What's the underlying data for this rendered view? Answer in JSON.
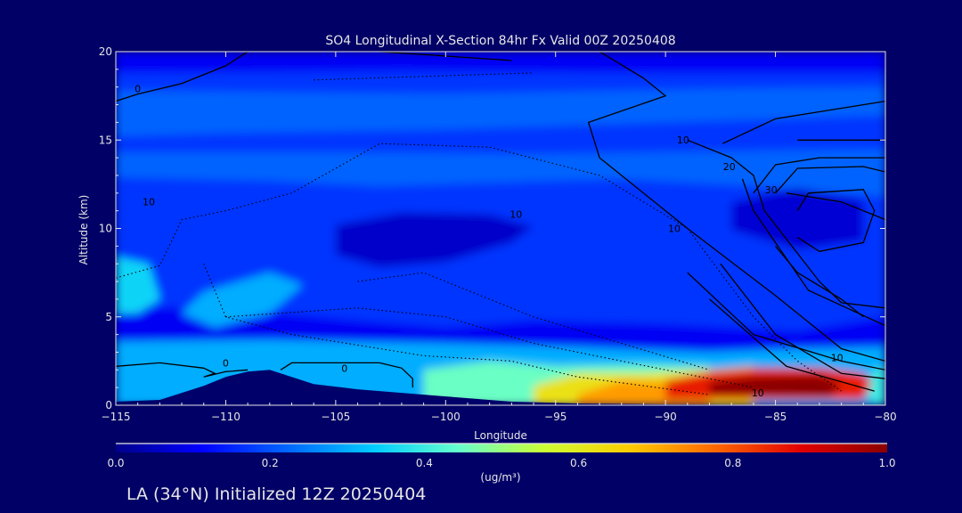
{
  "chart_data": {
    "type": "heatmap",
    "title": "SO4 Longitudinal X-Section 84hr  Fx Valid 00Z 20250408",
    "xlabel": "Longitude",
    "ylabel": "Altitude (km)",
    "xlim": [
      -115,
      -80
    ],
    "ylim": [
      0,
      20
    ],
    "x_ticks": [
      -115,
      -110,
      -105,
      -100,
      -95,
      -90,
      -85,
      -80
    ],
    "x_tick_labels": [
      "−115",
      "−110",
      "−105",
      "−100",
      "−95",
      "−90",
      "−85",
      "−80"
    ],
    "y_ticks": [
      0,
      5,
      10,
      15,
      20
    ],
    "y_tick_labels": [
      "0",
      "5",
      "10",
      "15",
      "20"
    ],
    "grid": false,
    "colorbar": {
      "label": "(ug/m³)",
      "min": 0.0,
      "max": 1.0,
      "ticks": [
        0.0,
        0.2,
        0.4,
        0.6,
        0.8,
        1.0
      ],
      "tick_labels": [
        "0.0",
        "0.2",
        "0.4",
        "0.6",
        "0.8",
        "1.0"
      ],
      "colors": [
        "#00008c",
        "#0000ff",
        "#0066ff",
        "#00ccff",
        "#66ffcc",
        "#ccff33",
        "#ffcc00",
        "#ff6600",
        "#e00000",
        "#8b0000"
      ]
    },
    "field_levels": [
      {
        "value": 0.1,
        "points": [
          [
            -115,
            20
          ],
          [
            -80,
            20
          ],
          [
            -80,
            0
          ],
          [
            -115,
            0
          ]
        ]
      },
      {
        "value": 0.17,
        "points": [
          [
            -115,
            18.8
          ],
          [
            -102,
            18.9
          ],
          [
            -90,
            18.8
          ],
          [
            -80,
            18.8
          ],
          [
            -80,
            5
          ],
          [
            -84,
            4.2
          ],
          [
            -90,
            4.6
          ],
          [
            -96,
            4.8
          ],
          [
            -100,
            4.4
          ],
          [
            -104,
            4.8
          ],
          [
            -110,
            5.5
          ],
          [
            -115,
            5.6
          ]
        ]
      },
      {
        "value": 0.22,
        "points": [
          [
            -115,
            17.8
          ],
          [
            -100,
            17.6
          ],
          [
            -88,
            17.9
          ],
          [
            -80,
            18
          ],
          [
            -80,
            16.4
          ],
          [
            -90,
            16
          ],
          [
            -100,
            15.6
          ],
          [
            -110,
            15.4
          ],
          [
            -115,
            15.2
          ]
        ]
      },
      {
        "value": 0.22,
        "points": [
          [
            -115,
            14.3
          ],
          [
            -104,
            14.3
          ],
          [
            -96,
            14.2
          ],
          [
            -86,
            14.4
          ],
          [
            -80,
            14.5
          ],
          [
            -80,
            11.8
          ],
          [
            -86,
            12.4
          ],
          [
            -92,
            12.8
          ],
          [
            -98,
            12.6
          ],
          [
            -103,
            12.4
          ],
          [
            -108,
            12.7
          ],
          [
            -115,
            12.9
          ]
        ]
      },
      {
        "value": 0.06,
        "points": [
          [
            -105,
            10.2
          ],
          [
            -102,
            10.9
          ],
          [
            -98,
            10.8
          ],
          [
            -96,
            10.1
          ],
          [
            -97,
            9.2
          ],
          [
            -100,
            8.1
          ],
          [
            -103,
            7.8
          ],
          [
            -105,
            8.5
          ]
        ]
      },
      {
        "value": 0.07,
        "points": [
          [
            -87,
            11.5
          ],
          [
            -84,
            12.3
          ],
          [
            -81,
            11.6
          ],
          [
            -81,
            9.3
          ],
          [
            -84,
            8.8
          ],
          [
            -87,
            9.9
          ]
        ]
      },
      {
        "value": 0.35,
        "points": [
          [
            -115,
            8.4
          ],
          [
            -113.5,
            8
          ],
          [
            -113,
            6
          ],
          [
            -114,
            5.2
          ],
          [
            -115,
            5.2
          ]
        ]
      },
      {
        "value": 0.3,
        "points": [
          [
            -111,
            6.4
          ],
          [
            -108,
            7.5
          ],
          [
            -106.5,
            6.8
          ],
          [
            -108,
            5.2
          ],
          [
            -110.5,
            4.4
          ],
          [
            -112,
            5.2
          ]
        ]
      },
      {
        "value": 0.3,
        "points": [
          [
            -115,
            3.6
          ],
          [
            -108,
            3.7
          ],
          [
            -100,
            3.5
          ],
          [
            -94,
            3.3
          ],
          [
            -88,
            3
          ],
          [
            -84,
            3.2
          ],
          [
            -80,
            3.3
          ],
          [
            -80,
            0
          ],
          [
            -115,
            0
          ]
        ]
      },
      {
        "value": 0.45,
        "points": [
          [
            -101,
            2
          ],
          [
            -98,
            2.5
          ],
          [
            -95,
            2.2
          ],
          [
            -91,
            2.3
          ],
          [
            -88,
            2.2
          ],
          [
            -88,
            0
          ],
          [
            -101,
            0
          ]
        ]
      },
      {
        "value": 0.62,
        "points": [
          [
            -96,
            1.1
          ],
          [
            -94,
            1.8
          ],
          [
            -91,
            1.8
          ],
          [
            -88,
            2
          ],
          [
            -86,
            2.2
          ],
          [
            -86,
            0
          ],
          [
            -96,
            0
          ]
        ]
      },
      {
        "value": 0.72,
        "points": [
          [
            -94,
            0.6
          ],
          [
            -92,
            1.4
          ],
          [
            -90,
            1.3
          ],
          [
            -88,
            1.6
          ],
          [
            -88,
            0
          ],
          [
            -94,
            0
          ]
        ]
      },
      {
        "value": 0.86,
        "points": [
          [
            -90,
            1.4
          ],
          [
            -88,
            1.9
          ],
          [
            -86,
            2.1
          ],
          [
            -83,
            2.1
          ],
          [
            -81,
            1.8
          ],
          [
            -80.6,
            1.3
          ],
          [
            -81,
            0.3
          ],
          [
            -90,
            0.3
          ]
        ]
      },
      {
        "value": 1.0,
        "points": [
          [
            -88,
            1.3
          ],
          [
            -86,
            1.6
          ],
          [
            -83,
            1.7
          ],
          [
            -82,
            1.2
          ],
          [
            -82.5,
            0.5
          ],
          [
            -88,
            0.6
          ]
        ]
      },
      {
        "value": 0.4,
        "points": [
          [
            -80.6,
            2
          ],
          [
            -80,
            2.2
          ],
          [
            -80,
            0
          ],
          [
            -80.8,
            0.2
          ]
        ]
      }
    ],
    "terrain": [
      [
        -115,
        0
      ],
      [
        -115,
        0.2
      ],
      [
        -113,
        0.3
      ],
      [
        -111,
        1.1
      ],
      [
        -110,
        1.6
      ],
      [
        -109,
        1.9
      ],
      [
        -108,
        2.0
      ],
      [
        -107,
        1.6
      ],
      [
        -106,
        1.2
      ],
      [
        -104,
        0.9
      ],
      [
        -102,
        0.7
      ],
      [
        -100,
        0.5
      ],
      [
        -97,
        0.2
      ],
      [
        -94,
        0.1
      ],
      [
        -90,
        0.05
      ],
      [
        -80,
        0
      ]
    ],
    "contours": [
      {
        "style": "solid",
        "points": [
          [
            -115,
            17.2
          ],
          [
            -114,
            17.6
          ],
          [
            -112,
            18.2
          ],
          [
            -110,
            19.2
          ],
          [
            -109,
            20
          ]
        ]
      },
      {
        "style": "solid",
        "points": [
          [
            -103,
            20
          ],
          [
            -97,
            19.5
          ]
        ]
      },
      {
        "style": "solid",
        "points": [
          [
            -93,
            20
          ],
          [
            -91,
            18.5
          ],
          [
            -90,
            17.5
          ],
          [
            -93.5,
            16
          ],
          [
            -93,
            14
          ],
          [
            -89,
            10
          ],
          [
            -85,
            6.2
          ],
          [
            -82,
            3.2
          ],
          [
            -80,
            2.5
          ]
        ]
      },
      {
        "style": "solid",
        "points": [
          [
            -87.4,
            14.8
          ],
          [
            -85,
            16.2
          ],
          [
            -80,
            17.2
          ]
        ]
      },
      {
        "style": "solid",
        "points": [
          [
            -89,
            15
          ],
          [
            -87,
            14
          ],
          [
            -86,
            13
          ],
          [
            -85.5,
            11
          ],
          [
            -83,
            7
          ],
          [
            -82,
            5.8
          ],
          [
            -80,
            5.5
          ]
        ]
      },
      {
        "style": "solid",
        "points": [
          [
            -84,
            15
          ],
          [
            -80,
            15
          ]
        ]
      },
      {
        "style": "solid",
        "points": [
          [
            -86,
            12
          ],
          [
            -85,
            13.6
          ],
          [
            -83,
            14
          ],
          [
            -80,
            14
          ]
        ]
      },
      {
        "style": "solid",
        "points": [
          [
            -86.5,
            12.8
          ],
          [
            -86,
            11
          ],
          [
            -83.5,
            6.5
          ],
          [
            -80,
            4.5
          ]
        ]
      },
      {
        "style": "solid",
        "points": [
          [
            -85,
            12
          ],
          [
            -84,
            13.4
          ],
          [
            -81,
            13.5
          ],
          [
            -80,
            13.2
          ]
        ]
      },
      {
        "style": "solid",
        "points": [
          [
            -84.5,
            12
          ],
          [
            -82,
            11.5
          ],
          [
            -80,
            10.5
          ]
        ]
      },
      {
        "style": "solid",
        "points": [
          [
            -85,
            9
          ],
          [
            -84,
            7.5
          ],
          [
            -82,
            6
          ],
          [
            -81,
            5
          ]
        ]
      },
      {
        "style": "solid",
        "points": [
          [
            -84,
            11
          ],
          [
            -83.5,
            12
          ],
          [
            -81,
            12.2
          ],
          [
            -80.5,
            11
          ],
          [
            -81,
            9.2
          ],
          [
            -83,
            8.7
          ],
          [
            -84,
            9.5
          ]
        ]
      },
      {
        "style": "solid",
        "points": [
          [
            -87.5,
            8
          ],
          [
            -85,
            4
          ],
          [
            -82,
            1.8
          ],
          [
            -80,
            1.5
          ]
        ]
      },
      {
        "style": "solid",
        "points": [
          [
            -88,
            6
          ],
          [
            -84.5,
            2.2
          ],
          [
            -80.5,
            0.8
          ]
        ]
      },
      {
        "style": "solid",
        "points": [
          [
            -89,
            7.5
          ],
          [
            -86,
            4
          ],
          [
            -82,
            2.5
          ],
          [
            -80,
            2
          ]
        ]
      },
      {
        "style": "solid",
        "points": [
          [
            -115,
            2.2
          ],
          [
            -113,
            2.4
          ],
          [
            -111,
            2.1
          ],
          [
            -110.5,
            1.8
          ],
          [
            -111,
            1.6
          ],
          [
            -110,
            1.9
          ],
          [
            -109,
            2
          ]
        ]
      },
      {
        "style": "solid",
        "points": [
          [
            -107.5,
            2
          ],
          [
            -107,
            2.4
          ],
          [
            -103,
            2.4
          ],
          [
            -102,
            2.1
          ],
          [
            -101.5,
            1.5
          ],
          [
            -101.5,
            1
          ]
        ]
      },
      {
        "style": "dotted",
        "points": [
          [
            -115,
            7.2
          ],
          [
            -113,
            7.9
          ],
          [
            -112,
            10.5
          ],
          [
            -110,
            11
          ],
          [
            -107,
            12
          ],
          [
            -103,
            14.8
          ],
          [
            -98,
            14.6
          ],
          [
            -93,
            13
          ],
          [
            -89,
            10
          ],
          [
            -86,
            5
          ],
          [
            -84,
            2.5
          ],
          [
            -82,
            0.8
          ]
        ]
      },
      {
        "style": "dotted",
        "points": [
          [
            -111,
            8
          ],
          [
            -110,
            5
          ],
          [
            -107,
            4
          ],
          [
            -101,
            2.8
          ],
          [
            -97,
            2.5
          ],
          [
            -94,
            1.6
          ],
          [
            -88,
            0.6
          ]
        ]
      },
      {
        "style": "dotted",
        "points": [
          [
            -110,
            5
          ],
          [
            -104,
            5.5
          ],
          [
            -100,
            5
          ],
          [
            -96,
            3.5
          ],
          [
            -90,
            2
          ],
          [
            -86,
            1
          ]
        ]
      },
      {
        "style": "dotted",
        "points": [
          [
            -104,
            7
          ],
          [
            -101,
            7.5
          ],
          [
            -99,
            6.5
          ],
          [
            -96,
            5
          ],
          [
            -92,
            3.5
          ],
          [
            -88,
            2
          ]
        ]
      },
      {
        "style": "dotted",
        "points": [
          [
            -106,
            18.4
          ],
          [
            -101,
            18.6
          ],
          [
            -96,
            18.8
          ]
        ]
      }
    ],
    "contour_labels": [
      {
        "text": "0",
        "x": -114,
        "y": 17.7
      },
      {
        "text": "10",
        "x": -113.5,
        "y": 11.3
      },
      {
        "text": "10",
        "x": -96.8,
        "y": 10.6
      },
      {
        "text": "10",
        "x": -89.6,
        "y": 9.8
      },
      {
        "text": "10",
        "x": -89.2,
        "y": 14.8
      },
      {
        "text": "20",
        "x": -87.1,
        "y": 13.3
      },
      {
        "text": "30",
        "x": -85.2,
        "y": 12.0
      },
      {
        "text": "0",
        "x": -110,
        "y": 2.2
      },
      {
        "text": "0",
        "x": -104.6,
        "y": 1.9
      },
      {
        "text": "10",
        "x": -82.2,
        "y": 2.5
      },
      {
        "text": "10",
        "x": -85.8,
        "y": 0.5
      }
    ]
  },
  "footer": {
    "caption": "LA (34°N) Initialized 12Z 20250404"
  }
}
